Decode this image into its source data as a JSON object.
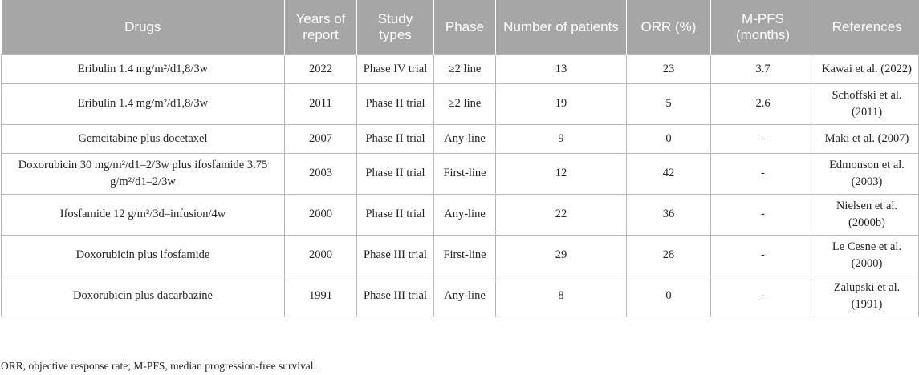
{
  "headers": [
    "Drugs",
    "Years of report",
    "Study types",
    "Phase",
    "Number of patients",
    "ORR (%)",
    "M-PFS (months)",
    "References"
  ],
  "rows": [
    [
      "Eribulin 1.4 mg/m²/d1,8/3w",
      "2022",
      "Phase IV trial",
      "≥2 line",
      "13",
      "23",
      "3.7",
      "Kawai et al. (2022)"
    ],
    [
      "Eribulin 1.4 mg/m²/d1,8/3w",
      "2011",
      "Phase II trial",
      "≥2 line",
      "19",
      "5",
      "2.6",
      "Schoffski et al. (2011)"
    ],
    [
      "Gemcitabine plus docetaxel",
      "2007",
      "Phase II trial",
      "Any-line",
      "9",
      "0",
      "-",
      "Maki et al. (2007)"
    ],
    [
      "Doxorubicin 30 mg/m²/d1–2/3w plus ifosfamide 3.75 g/m²/d1–2/3w",
      "2003",
      "Phase II trial",
      "First-line",
      "12",
      "42",
      "-",
      "Edmonson et al. (2003)"
    ],
    [
      "Ifosfamide 12 g/m²/3d–infusion/4w",
      "2000",
      "Phase II trial",
      "Any-line",
      "22",
      "36",
      "-",
      "Nielsen et al. (2000b)"
    ],
    [
      "Doxorubicin plus ifosfamide",
      "2000",
      "Phase III trial",
      "First-line",
      "29",
      "28",
      "-",
      "Le Cesne et al. (2000)"
    ],
    [
      "Doxorubicin plus dacarbazine",
      "1991",
      "Phase III trial",
      "Any-line",
      "8",
      "0",
      "-",
      "Zalupski et al. (1991)"
    ]
  ],
  "footnote": "ORR, objective response rate; M-PFS, median progression-free survival."
}
